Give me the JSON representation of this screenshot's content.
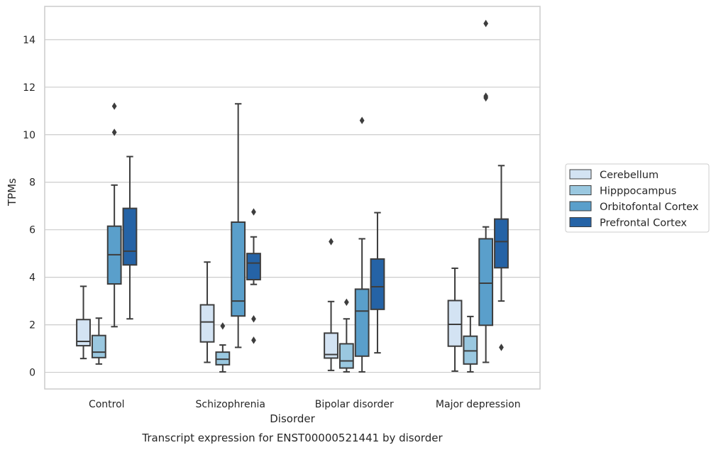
{
  "chart_data": {
    "type": "boxplot",
    "title": "Transcript expression for ENST00000521441 by disorder",
    "xlabel": "Disorder",
    "ylabel": "TPMs",
    "ylim": [
      -0.7,
      15.4
    ],
    "yticks": [
      0,
      2,
      4,
      6,
      8,
      10,
      12,
      14
    ],
    "grid": true,
    "legend_position": "right",
    "categories": [
      "Control",
      "Schizophrenia",
      "Bipolar disorder",
      "Major depression"
    ],
    "series": [
      {
        "name": "Cerebellum",
        "color": "#d3e3f3",
        "boxes": [
          {
            "whislo": 0.58,
            "q1": 1.12,
            "med": 1.3,
            "q3": 2.22,
            "whishi": 3.62,
            "fliers": []
          },
          {
            "whislo": 0.42,
            "q1": 1.28,
            "med": 2.12,
            "q3": 2.84,
            "whishi": 4.64,
            "fliers": []
          },
          {
            "whislo": 0.08,
            "q1": 0.6,
            "med": 0.75,
            "q3": 1.65,
            "whishi": 2.98,
            "fliers": [
              5.5
            ]
          },
          {
            "whislo": 0.05,
            "q1": 1.1,
            "med": 2.02,
            "q3": 3.02,
            "whishi": 4.38,
            "fliers": []
          }
        ]
      },
      {
        "name": "Hipppocampus",
        "color": "#9ac8e0",
        "boxes": [
          {
            "whislo": 0.35,
            "q1": 0.62,
            "med": 0.85,
            "q3": 1.55,
            "whishi": 2.28,
            "fliers": []
          },
          {
            "whislo": 0.02,
            "q1": 0.32,
            "med": 0.55,
            "q3": 0.85,
            "whishi": 1.15,
            "fliers": [
              1.95
            ]
          },
          {
            "whislo": 0.02,
            "q1": 0.18,
            "med": 0.48,
            "q3": 1.2,
            "whishi": 2.25,
            "fliers": [
              2.95
            ]
          },
          {
            "whislo": 0.02,
            "q1": 0.35,
            "med": 0.9,
            "q3": 1.52,
            "whishi": 2.35,
            "fliers": []
          }
        ]
      },
      {
        "name": "Orbitofontal Cortex",
        "color": "#5a9fcb",
        "boxes": [
          {
            "whislo": 1.92,
            "q1": 3.72,
            "med": 4.95,
            "q3": 6.15,
            "whishi": 7.88,
            "fliers": [
              10.1,
              11.2
            ]
          },
          {
            "whislo": 1.05,
            "q1": 2.37,
            "med": 3.0,
            "q3": 6.32,
            "whishi": 11.3,
            "fliers": []
          },
          {
            "whislo": 0.02,
            "q1": 0.68,
            "med": 2.58,
            "q3": 3.5,
            "whishi": 5.62,
            "fliers": [
              10.6
            ]
          },
          {
            "whislo": 0.42,
            "q1": 1.98,
            "med": 3.75,
            "q3": 5.62,
            "whishi": 6.12,
            "fliers": [
              11.55,
              11.62,
              14.68
            ]
          }
        ]
      },
      {
        "name": "Prefrontal Cortex",
        "color": "#2563a6",
        "boxes": [
          {
            "whislo": 2.25,
            "q1": 4.52,
            "med": 5.1,
            "q3": 6.9,
            "whishi": 9.08,
            "fliers": []
          },
          {
            "whislo": 3.7,
            "q1": 3.9,
            "med": 4.6,
            "q3": 5.0,
            "whishi": 5.7,
            "fliers": [
              6.75,
              2.25,
              1.35
            ]
          },
          {
            "whislo": 0.82,
            "q1": 2.65,
            "med": 3.6,
            "q3": 4.77,
            "whishi": 6.72,
            "fliers": []
          },
          {
            "whislo": 3.0,
            "q1": 4.4,
            "med": 5.5,
            "q3": 6.45,
            "whishi": 8.7,
            "fliers": [
              1.05
            ]
          }
        ]
      }
    ]
  }
}
